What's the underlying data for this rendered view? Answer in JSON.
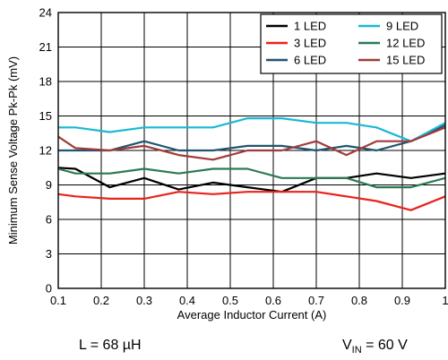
{
  "chart_data": {
    "type": "line",
    "title": "",
    "xlabel": "Average Inductor Current (A)",
    "ylabel": "Minimum Sense Voltage Pk-Pk (mV)",
    "xlim": [
      0.1,
      1.0
    ],
    "ylim": [
      0,
      24
    ],
    "xticks": [
      "0.1",
      "0.2",
      "0.3",
      "0.4",
      "0.5",
      "0.6",
      "0.7",
      "0.8",
      "0.9",
      "1"
    ],
    "yticks": [
      "0",
      "3",
      "6",
      "9",
      "12",
      "15",
      "18",
      "21",
      "24"
    ],
    "grid": true,
    "legend_position": "top-right",
    "series": [
      {
        "name": "1 LED",
        "color": "#000000",
        "x": [
          0.1,
          0.14,
          0.22,
          0.3,
          0.38,
          0.46,
          0.54,
          0.62,
          0.7,
          0.77,
          0.84,
          0.92,
          1.0
        ],
        "y": [
          10.5,
          10.4,
          8.8,
          9.6,
          8.6,
          9.2,
          8.8,
          8.4,
          9.6,
          9.6,
          10.0,
          9.6,
          10.0
        ]
      },
      {
        "name": "3 LED",
        "color": "#e8231c",
        "x": [
          0.1,
          0.14,
          0.22,
          0.3,
          0.38,
          0.46,
          0.54,
          0.62,
          0.7,
          0.77,
          0.84,
          0.92,
          1.0
        ],
        "y": [
          8.2,
          8.0,
          7.8,
          7.8,
          8.4,
          8.2,
          8.4,
          8.4,
          8.4,
          8.0,
          7.6,
          6.8,
          8.0
        ]
      },
      {
        "name": "6 LED",
        "color": "#1f5670",
        "x": [
          0.1,
          0.14,
          0.22,
          0.3,
          0.38,
          0.46,
          0.54,
          0.62,
          0.7,
          0.77,
          0.84,
          0.92,
          1.0
        ],
        "y": [
          12.0,
          12.0,
          12.0,
          12.8,
          12.0,
          12.0,
          12.4,
          12.4,
          12.0,
          12.4,
          12.0,
          12.8,
          14.2
        ]
      },
      {
        "name": "9 LED",
        "color": "#1ab9d4",
        "x": [
          0.1,
          0.14,
          0.22,
          0.3,
          0.38,
          0.46,
          0.54,
          0.62,
          0.7,
          0.77,
          0.84,
          0.92,
          1.0
        ],
        "y": [
          14.0,
          14.0,
          13.6,
          14.0,
          14.0,
          14.0,
          14.8,
          14.8,
          14.4,
          14.4,
          14.0,
          12.8,
          14.4
        ]
      },
      {
        "name": "12 LED",
        "color": "#2c7a55",
        "x": [
          0.1,
          0.14,
          0.22,
          0.3,
          0.38,
          0.46,
          0.54,
          0.62,
          0.7,
          0.77,
          0.84,
          0.92,
          1.0
        ],
        "y": [
          10.4,
          10.0,
          10.0,
          10.4,
          10.0,
          10.4,
          10.4,
          9.6,
          9.6,
          9.6,
          8.8,
          8.8,
          9.6
        ]
      },
      {
        "name": "15 LED",
        "color": "#a23a3a",
        "x": [
          0.1,
          0.14,
          0.22,
          0.3,
          0.38,
          0.46,
          0.54,
          0.62,
          0.7,
          0.77,
          0.84,
          0.92,
          1.0
        ],
        "y": [
          13.2,
          12.2,
          12.0,
          12.4,
          11.6,
          11.2,
          12.0,
          12.0,
          12.8,
          11.6,
          12.8,
          12.8,
          14.0
        ]
      }
    ]
  },
  "annotations": {
    "inductance": "L = 68 µH",
    "vin_prefix": "V",
    "vin_sub": "IN",
    "vin_suffix": " = 60 V"
  }
}
